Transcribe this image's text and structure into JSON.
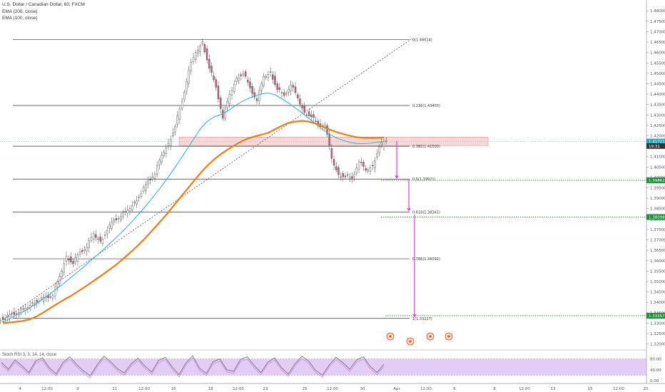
{
  "legend": {
    "symbol": "U.S. Dollar / Canadian Dollar, 60, FXCM",
    "ema1": "EMA (200, close)",
    "ema2": "EMA (100, close)"
  },
  "osc_legend": "Stoch RSI 3, 3, 14, 14, close",
  "colors": {
    "candle_up": "#ffffff",
    "candle_down": "#c4657a",
    "ema200": "#ef7d10",
    "ema100": "#3ab5d6",
    "zone_fill": "#f5c9c9",
    "arrow": "#e040d8",
    "level_target": "#2e7d32",
    "price_badge": "#1b8e3a",
    "osc_band": "#d9b8f0",
    "osc_line": "#777777"
  },
  "chart_data": {
    "type": "line",
    "title": "U.S. Dollar / Canadian Dollar, 60, FXCM",
    "ylim": [
      1.3185,
      1.4835
    ],
    "y_ticks": [
      "1.48000",
      "1.47500",
      "1.47000",
      "1.46500",
      "1.46000",
      "1.45500",
      "1.45000",
      "1.44500",
      "1.44000",
      "1.43500",
      "1.43000",
      "1.42500",
      "1.42000",
      "1.41500",
      "1.41000",
      "1.40500",
      "1.40000",
      "1.39500",
      "1.39000",
      "1.38500",
      "1.38000",
      "1.37500",
      "1.37000",
      "1.36500",
      "1.36000",
      "1.35500",
      "1.35000",
      "1.34500",
      "1.34000",
      "1.33500",
      "1.33000",
      "1.32500",
      "1.32000"
    ],
    "x_ticks": [
      "4",
      "12:00",
      "9",
      "11",
      "12:00",
      "16",
      "18",
      "12:00",
      "23",
      "25",
      "12:00",
      "30",
      "Apr",
      "12:00",
      "6",
      "8",
      "12:00",
      "13",
      "15",
      "12:00",
      "20"
    ],
    "fib_levels": [
      {
        "label": "0(1.46614)",
        "value": 1.46614
      },
      {
        "label": "0.236(1.43455)",
        "value": 1.43455
      },
      {
        "label": "0.382(1.41500)",
        "value": 1.415
      },
      {
        "label": "0.5(1.39921)",
        "value": 1.39921
      },
      {
        "label": "0.618(1.38341)",
        "value": 1.38341
      },
      {
        "label": "0.786(1.36092)",
        "value": 1.36092
      },
      {
        "label": "1(1.33227)",
        "value": 1.33227
      }
    ],
    "target_levels": [
      1.39862,
      1.38098,
      1.33357
    ],
    "price_labels": [
      {
        "text": "1.41721",
        "value": 1.41721
      },
      {
        "text": "19:31",
        "value": 1.4151
      },
      {
        "text": "1.39862",
        "value": 1.39862
      },
      {
        "text": "1.38098",
        "value": 1.38098
      },
      {
        "text": "1.33357",
        "value": 1.33357
      }
    ],
    "zone": [
      1.4153,
      1.4194
    ],
    "close_series": [
      1.333,
      1.3341,
      1.3356,
      1.3362,
      1.3398,
      1.3415,
      1.3422,
      1.3437,
      1.3515,
      1.3621,
      1.3595,
      1.3638,
      1.3668,
      1.372,
      1.3694,
      1.3755,
      1.3792,
      1.3817,
      1.3834,
      1.3882,
      1.3932,
      1.3978,
      1.4022,
      1.4098,
      1.4164,
      1.4255,
      1.4361,
      1.4519,
      1.459,
      1.4651,
      1.4535,
      1.4428,
      1.4289,
      1.4389,
      1.4477,
      1.4508,
      1.4425,
      1.4373,
      1.4475,
      1.4506,
      1.4431,
      1.4388,
      1.4449,
      1.4371,
      1.4313,
      1.4302,
      1.4246,
      1.4255,
      1.4081,
      1.4013,
      1.4013,
      1.3991,
      1.408,
      1.4024,
      1.4057,
      1.4157,
      1.4172
    ],
    "ema100_series": [
      1.3305,
      1.332,
      1.334,
      1.3355,
      1.3375,
      1.3396,
      1.3419,
      1.3442,
      1.3467,
      1.3492,
      1.3519,
      1.3546,
      1.3574,
      1.3603,
      1.3631,
      1.3661,
      1.3691,
      1.3722,
      1.3754,
      1.3789,
      1.3825,
      1.3863,
      1.3903,
      1.3944,
      1.3988,
      1.4034,
      1.4082,
      1.4132,
      1.4183,
      1.4232,
      1.4268,
      1.429,
      1.4302,
      1.4318,
      1.4341,
      1.4362,
      1.4378,
      1.4391,
      1.4401,
      1.4405,
      1.4397,
      1.4378,
      1.4357,
      1.4333,
      1.4309,
      1.4283,
      1.4257,
      1.4231,
      1.4208,
      1.419,
      1.4178,
      1.4168,
      1.4163,
      1.4162,
      1.4164,
      1.4169,
      1.4172
    ],
    "ema200_series": [
      1.33,
      1.3303,
      1.3307,
      1.3311,
      1.3319,
      1.3333,
      1.3352,
      1.3373,
      1.3393,
      1.3413,
      1.3431,
      1.3452,
      1.3473,
      1.3495,
      1.3518,
      1.3541,
      1.3565,
      1.359,
      1.3618,
      1.3647,
      1.3678,
      1.3711,
      1.3747,
      1.3783,
      1.382,
      1.386,
      1.39,
      1.394,
      1.398,
      1.4019,
      1.4055,
      1.4085,
      1.4111,
      1.4133,
      1.4153,
      1.4172,
      1.4187,
      1.4197,
      1.4205,
      1.4214,
      1.4231,
      1.4248,
      1.4262,
      1.4268,
      1.4272,
      1.4268,
      1.4258,
      1.4245,
      1.423,
      1.4218,
      1.4209,
      1.42,
      1.4193,
      1.419,
      1.4189,
      1.419,
      1.4192
    ],
    "osc_ticks": [
      "80.00",
      "40.00",
      "0.00"
    ],
    "osc_band": [
      20,
      80
    ],
    "osc_series": [
      68,
      42,
      76,
      55,
      30,
      72,
      84,
      48,
      25,
      66,
      88,
      60,
      36,
      18,
      58,
      90,
      70,
      44,
      28,
      62,
      82,
      54,
      32,
      74,
      86,
      50,
      22,
      64,
      92,
      46,
      26,
      70,
      80,
      40,
      34,
      78,
      88,
      56,
      30,
      68,
      84,
      48,
      24,
      62,
      90,
      72,
      38,
      20,
      58,
      86,
      66,
      42,
      76,
      88,
      52,
      30,
      60
    ]
  }
}
